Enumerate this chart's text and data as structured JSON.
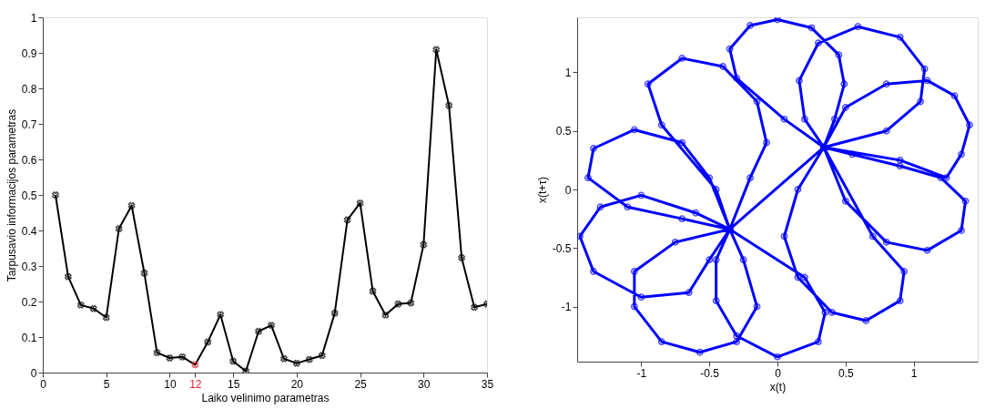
{
  "chart_data": [
    {
      "type": "line",
      "xlabel": "Laiko velinimo parametras",
      "ylabel": "Tarpusavio informacijos parametras",
      "x": [
        1,
        2,
        3,
        4,
        5,
        6,
        7,
        8,
        9,
        10,
        11,
        12,
        13,
        14,
        15,
        16,
        17,
        18,
        19,
        20,
        21,
        22,
        23,
        24,
        25,
        26,
        27,
        28,
        29,
        30,
        31,
        32,
        33,
        34,
        35
      ],
      "series": [
        {
          "color": "#000000",
          "values": [
            0.5,
            0.27,
            0.19,
            0.18,
            0.155,
            0.405,
            0.47,
            0.28,
            0.056,
            0.041,
            0.044,
            0.022,
            0.086,
            0.163,
            0.032,
            0.004,
            0.116,
            0.133,
            0.039,
            0.026,
            0.037,
            0.048,
            0.167,
            0.43,
            0.477,
            0.229,
            0.162,
            0.193,
            0.196,
            0.36,
            0.909,
            0.752,
            0.323,
            0.184,
            0.193
          ]
        }
      ],
      "colors": [
        "#000000",
        "#000000",
        "#000000",
        "#000000",
        "#000000",
        "#000000",
        "#000000",
        "#000000",
        "#000000",
        "#000000",
        "#000000",
        "#e0202c",
        "#000000",
        "#000000",
        "#000000",
        "#000000",
        "#000000",
        "#000000",
        "#000000",
        "#000000",
        "#000000",
        "#000000",
        "#000000",
        "#000000",
        "#000000",
        "#000000",
        "#000000",
        "#000000",
        "#000000",
        "#000000",
        "#000000",
        "#000000",
        "#000000",
        "#000000",
        "#000000"
      ],
      "xlim": [
        0,
        35
      ],
      "ylim": [
        0,
        1
      ],
      "xticks": [
        0,
        5,
        10,
        12,
        15,
        20,
        25,
        30,
        35
      ],
      "yticks": [
        0,
        0.1,
        0.2,
        0.3,
        0.4,
        0.5,
        0.6,
        0.7,
        0.8,
        0.9,
        1
      ],
      "marker": "cross",
      "grid": false
    },
    {
      "type": "line",
      "xlabel": "x(t)",
      "ylabel": "x(t+τ)",
      "x": [
        0.34,
        0.05,
        -0.3,
        -0.35,
        -0.2,
        0,
        0.25,
        0.45,
        0.49,
        0.42,
        0.34,
        0.2,
        0.16,
        0.3,
        0.59,
        0.9,
        1.08,
        1.05,
        0.8,
        0.34,
        0.5,
        0.8,
        1.1,
        1.3,
        1.41,
        1.35,
        1.24,
        0.9,
        0.34,
        0.55,
        0.9,
        1.2,
        1.38,
        1.35,
        1.1,
        0.8,
        0.5,
        0.34,
        0.15,
        0.05,
        0.15,
        0.4,
        0.65,
        0.9,
        0.93,
        0.7,
        0.34,
        -0.35,
        -0.45,
        -0.45,
        -0.3,
        0,
        0.3,
        0.35,
        0.2,
        -0.35,
        -0.75,
        -1.05,
        -1.05,
        -0.85,
        -0.57,
        -0.3,
        -0.15,
        -0.25,
        -0.35,
        -0.6,
        -1.0,
        -1.3,
        -1.45,
        -1.35,
        -1.0,
        -0.65,
        -0.5,
        -0.35,
        -0.7,
        -1.1,
        -1.39,
        -1.35,
        -1.05,
        -0.7,
        -0.5,
        -0.35,
        -0.45,
        -0.85,
        -0.95,
        -0.7,
        -0.4,
        -0.15,
        -0.08,
        -0.2,
        -0.35
      ],
      "series": [
        {
          "color": "#0000ff",
          "values": [
            0.36,
            0.6,
            0.95,
            1.2,
            1.4,
            1.45,
            1.38,
            1.15,
            0.9,
            0.6,
            0.36,
            0.6,
            0.93,
            1.25,
            1.39,
            1.3,
            1.03,
            0.75,
            0.5,
            0.36,
            0.7,
            0.9,
            0.93,
            0.8,
            0.55,
            0.3,
            0.1,
            0.25,
            0.36,
            0.3,
            0.2,
            0.1,
            -0.1,
            -0.35,
            -0.52,
            -0.45,
            -0.1,
            0.36,
            0.0,
            -0.4,
            -0.75,
            -1.05,
            -1.12,
            -0.95,
            -0.7,
            -0.4,
            0.36,
            -0.34,
            -0.6,
            -0.95,
            -1.25,
            -1.43,
            -1.3,
            -1.05,
            -0.75,
            -0.34,
            -0.45,
            -0.7,
            -1.0,
            -1.3,
            -1.39,
            -1.3,
            -1.0,
            -0.6,
            -0.34,
            -0.2,
            -0.05,
            -0.15,
            -0.4,
            -0.7,
            -0.92,
            -0.88,
            -0.6,
            -0.34,
            -0.25,
            -0.15,
            0.1,
            0.35,
            0.51,
            0.4,
            0.1,
            -0.34,
            0.0,
            0.55,
            0.9,
            1.12,
            1.05,
            0.75,
            0.4,
            0.1,
            -0.34
          ]
        }
      ],
      "xlim": [
        -1.47,
        1.47
      ],
      "ylim": [
        -1.47,
        1.47
      ],
      "xticks": [
        -1,
        -0.5,
        0,
        0.5,
        1
      ],
      "yticks": [
        -1,
        -0.5,
        0,
        0.5,
        1
      ],
      "marker": "circle",
      "grid": false
    }
  ]
}
